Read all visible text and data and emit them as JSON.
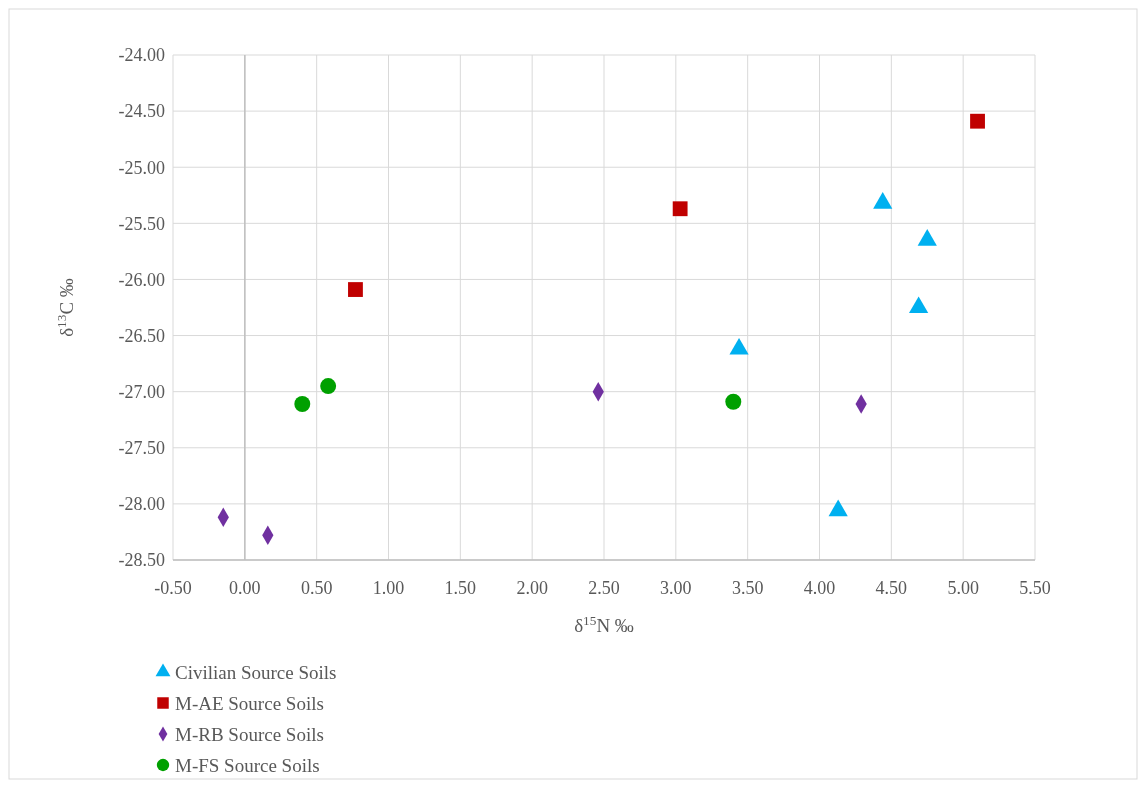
{
  "chart_data": {
    "type": "scatter",
    "xlabel": "δ$^{15}$N ‰",
    "ylabel": "δ$^{13}$C ‰",
    "xlim": [
      -0.5,
      5.5
    ],
    "ylim": [
      -28.5,
      -24
    ],
    "xticks": [
      {
        "value": -0.5,
        "label": "-0.50"
      },
      {
        "value": 0,
        "label": "0.00"
      },
      {
        "value": 0.5,
        "label": "0.50"
      },
      {
        "value": 1,
        "label": "1.00"
      },
      {
        "value": 1.5,
        "label": "1.50"
      },
      {
        "value": 2,
        "label": "2.00"
      },
      {
        "value": 2.5,
        "label": "2.50"
      },
      {
        "value": 3,
        "label": "3.00"
      },
      {
        "value": 3.5,
        "label": "3.50"
      },
      {
        "value": 4,
        "label": "4.00"
      },
      {
        "value": 4.5,
        "label": "4.50"
      },
      {
        "value": 5,
        "label": "5.00"
      },
      {
        "value": 5.5,
        "label": "5.50"
      }
    ],
    "yticks": [
      {
        "value": -28.5,
        "label": "-28.50"
      },
      {
        "value": -28,
        "label": "-28.00"
      },
      {
        "value": -27.5,
        "label": "-27.50"
      },
      {
        "value": -27,
        "label": "-27.00"
      },
      {
        "value": -26.5,
        "label": "-26.50"
      },
      {
        "value": -26,
        "label": "-26.00"
      },
      {
        "value": -25.5,
        "label": "-25.50"
      },
      {
        "value": -25,
        "label": "-25.00"
      },
      {
        "value": -24.5,
        "label": "-24.50"
      },
      {
        "value": -24,
        "label": "-24.00"
      }
    ],
    "grid": true,
    "legend": "bottom",
    "series": [
      {
        "name": "Civilian Source Soils",
        "color": "#00b0f0",
        "marker": "triangle",
        "x": [
          4.44,
          4.75,
          4.69,
          3.44,
          4.13
        ],
        "values": [
          -25.32,
          -25.65,
          -26.25,
          -26.62,
          -28.06
        ]
      },
      {
        "name": "M-AE Source Soils",
        "color": "#c00000",
        "marker": "square",
        "x": [
          5.1,
          3.03,
          0.77
        ],
        "values": [
          -24.59,
          -25.37,
          -26.09
        ]
      },
      {
        "name": "M-RB Source Soils",
        "color": "#7030a0",
        "marker": "diamond",
        "x": [
          -0.15,
          0.16,
          2.46,
          4.29
        ],
        "values": [
          -28.12,
          -28.28,
          -27.0,
          -27.11
        ]
      },
      {
        "name": "M-FS Source Soils",
        "color": "#00a000",
        "marker": "circle",
        "x": [
          0.4,
          0.58,
          3.4
        ],
        "values": [
          -27.11,
          -26.95,
          -27.09
        ]
      }
    ]
  }
}
